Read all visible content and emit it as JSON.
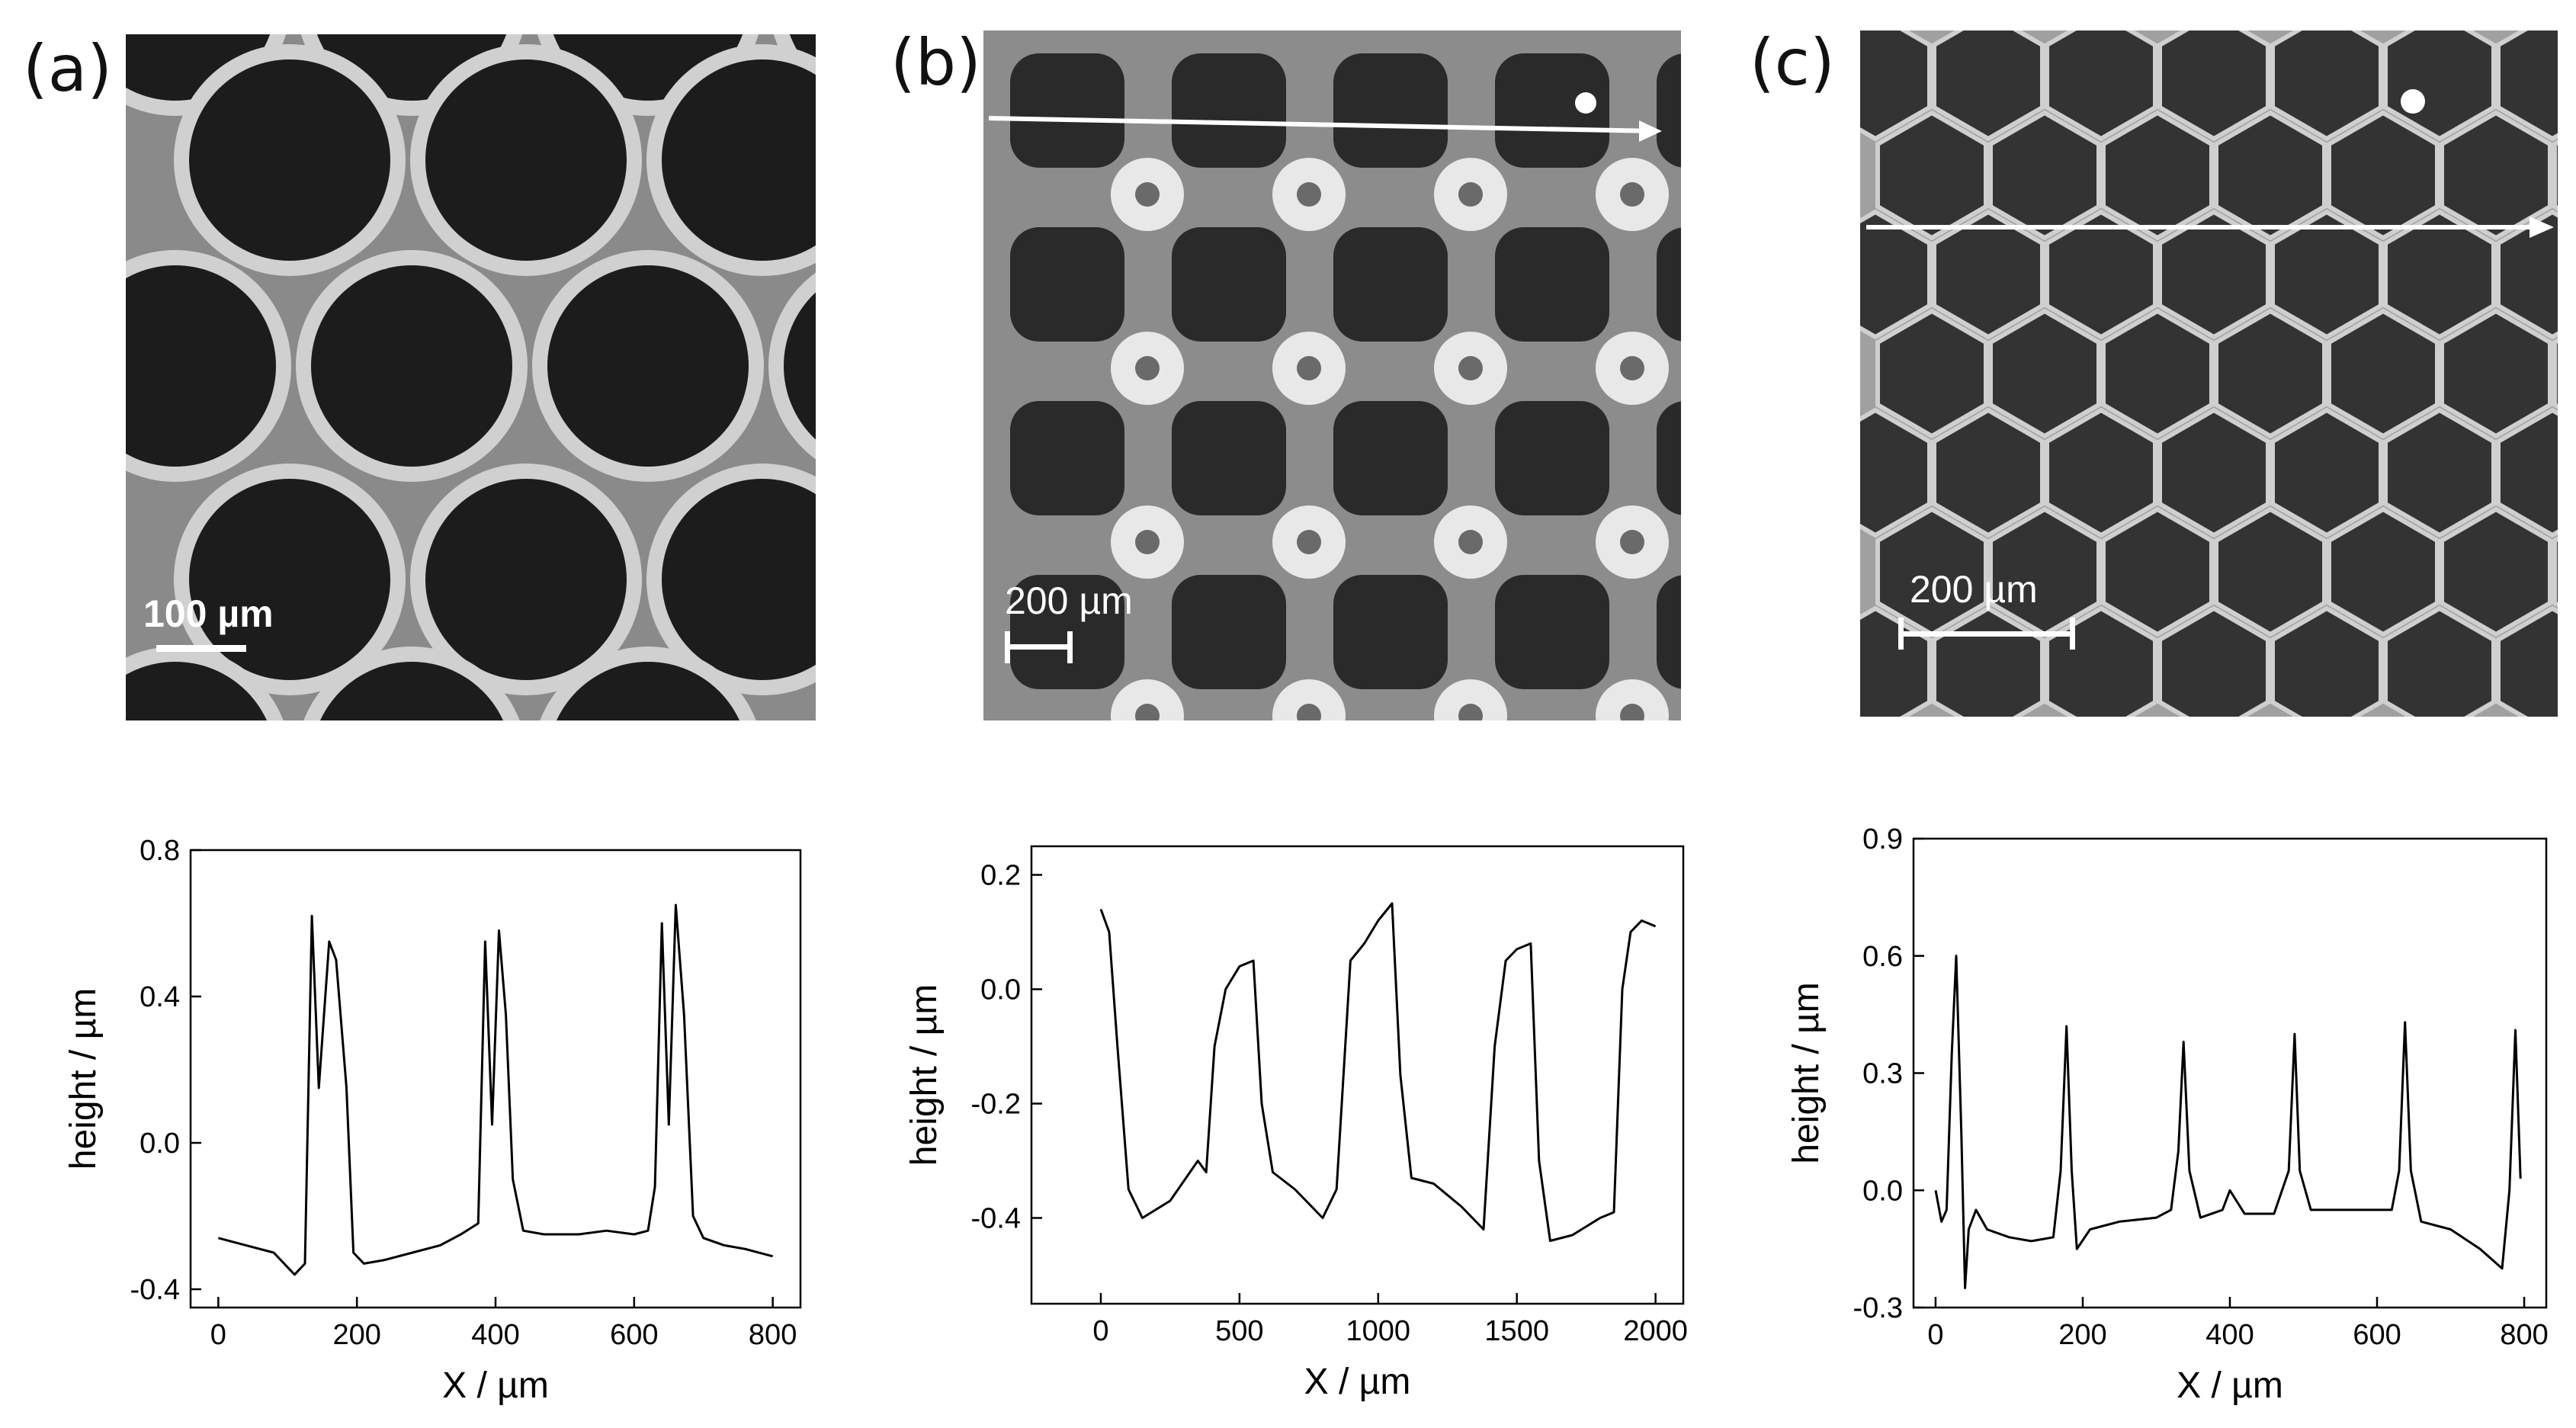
{
  "panels": [
    {
      "label": "(a)",
      "scale_bar": "100 µm"
    },
    {
      "label": "(b)",
      "scale_bar": "200 µm"
    },
    {
      "label": "(c)",
      "scale_bar": "200 µm"
    }
  ],
  "colors": {
    "line": "#000000",
    "image_dark": "#1e1e1e",
    "rim": "#c8c8c8"
  },
  "chart_data": [
    {
      "type": "line",
      "xlabel": "X / µm",
      "ylabel": "height / µm",
      "xlim": [
        -40,
        840
      ],
      "ylim": [
        -0.45,
        0.8
      ],
      "xticks": [
        0,
        200,
        400,
        600,
        800
      ],
      "yticks": [
        -0.4,
        0.0,
        0.4,
        0.8
      ],
      "ytick_labels": [
        "-0.4",
        "0.0",
        "0.4",
        "0.8"
      ],
      "series": [
        {
          "x": [
            0,
            40,
            80,
            110,
            125,
            135,
            145,
            160,
            170,
            185,
            195,
            210,
            240,
            280,
            320,
            350,
            375,
            385,
            395,
            405,
            415,
            425,
            440,
            470,
            520,
            560,
            600,
            620,
            630,
            640,
            650,
            660,
            672,
            685,
            700,
            730,
            760,
            800
          ],
          "y": [
            -0.26,
            -0.28,
            -0.3,
            -0.36,
            -0.33,
            0.62,
            0.15,
            0.55,
            0.5,
            0.15,
            -0.3,
            -0.33,
            -0.32,
            -0.3,
            -0.28,
            -0.25,
            -0.22,
            0.55,
            0.05,
            0.58,
            0.35,
            -0.1,
            -0.24,
            -0.25,
            -0.25,
            -0.24,
            -0.25,
            -0.24,
            -0.12,
            0.6,
            0.05,
            0.65,
            0.35,
            -0.2,
            -0.26,
            -0.28,
            -0.29,
            -0.31
          ]
        }
      ]
    },
    {
      "type": "line",
      "xlabel": "X / µm",
      "ylabel": "height / µm",
      "xlim": [
        -250,
        2100
      ],
      "ylim": [
        -0.55,
        0.25
      ],
      "xticks": [
        0,
        500,
        1000,
        1500,
        2000
      ],
      "yticks": [
        -0.4,
        -0.2,
        0.0,
        0.2
      ],
      "ytick_labels": [
        "-0.4",
        "-0.2",
        "0.0",
        "0.2"
      ],
      "series": [
        {
          "x": [
            0,
            30,
            60,
            100,
            150,
            250,
            350,
            380,
            410,
            450,
            500,
            550,
            580,
            620,
            700,
            800,
            850,
            900,
            950,
            1000,
            1050,
            1080,
            1120,
            1200,
            1300,
            1380,
            1420,
            1460,
            1500,
            1550,
            1580,
            1620,
            1700,
            1800,
            1850,
            1880,
            1910,
            1950,
            2000
          ],
          "y": [
            0.14,
            0.1,
            -0.1,
            -0.35,
            -0.4,
            -0.37,
            -0.3,
            -0.32,
            -0.1,
            0.0,
            0.04,
            0.05,
            -0.2,
            -0.32,
            -0.35,
            -0.4,
            -0.35,
            0.05,
            0.08,
            0.12,
            0.15,
            -0.15,
            -0.33,
            -0.34,
            -0.38,
            -0.42,
            -0.1,
            0.05,
            0.07,
            0.08,
            -0.3,
            -0.44,
            -0.43,
            -0.4,
            -0.39,
            0.0,
            0.1,
            0.12,
            0.11
          ]
        }
      ]
    },
    {
      "type": "line",
      "xlabel": "X / µm",
      "ylabel": "height / µm",
      "xlim": [
        -30,
        830
      ],
      "ylim": [
        -0.3,
        0.9
      ],
      "xticks": [
        0,
        200,
        400,
        600,
        800
      ],
      "yticks": [
        -0.3,
        0.0,
        0.3,
        0.6,
        0.9
      ],
      "ytick_labels": [
        "-0.3",
        "0.0",
        "0.3",
        "0.6",
        "0.9"
      ],
      "series": [
        {
          "x": [
            0,
            8,
            15,
            22,
            28,
            35,
            40,
            45,
            55,
            70,
            100,
            130,
            160,
            170,
            178,
            185,
            192,
            210,
            250,
            300,
            320,
            330,
            337,
            345,
            360,
            390,
            400,
            420,
            460,
            480,
            488,
            495,
            510,
            560,
            600,
            620,
            630,
            638,
            646,
            660,
            700,
            740,
            770,
            780,
            788,
            795
          ],
          "y": [
            0.0,
            -0.08,
            -0.05,
            0.35,
            0.6,
            0.15,
            -0.25,
            -0.1,
            -0.05,
            -0.1,
            -0.12,
            -0.13,
            -0.12,
            0.05,
            0.42,
            0.05,
            -0.15,
            -0.1,
            -0.08,
            -0.07,
            -0.05,
            0.1,
            0.38,
            0.05,
            -0.07,
            -0.05,
            0.0,
            -0.06,
            -0.06,
            0.05,
            0.4,
            0.05,
            -0.05,
            -0.05,
            -0.05,
            -0.05,
            0.05,
            0.43,
            0.05,
            -0.08,
            -0.1,
            -0.15,
            -0.2,
            0.0,
            0.41,
            0.03
          ]
        }
      ]
    }
  ]
}
